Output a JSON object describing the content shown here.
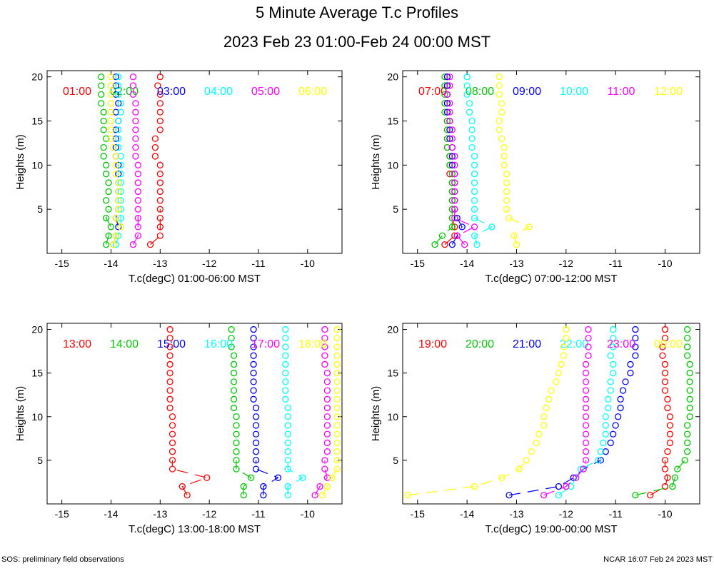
{
  "title": "5 Minute Average T.c Profiles",
  "subtitle": "2023 Feb 23 01:00-Feb 24 00:00 MST",
  "footer_left": "SOS: preliminary field observations",
  "footer_right": "NCAR 16:07 Feb 24 2023 MST",
  "colors": [
    "#ff0000",
    "#00c800",
    "#0000ff",
    "#00ffff",
    "#ff00ff",
    "#ffff00"
  ],
  "chart_data": [
    {
      "type": "line",
      "xlabel": "T.c(degC) 01:00-06:00 MST",
      "ylabel": "Heights (m)",
      "xlim": [
        -15.3,
        -9.3
      ],
      "ylim": [
        0,
        20.7
      ],
      "xticks": [
        -15,
        -14,
        -13,
        -12,
        -11,
        -10
      ],
      "yticks": [
        5,
        10,
        15,
        20
      ],
      "heights": [
        1,
        2,
        3,
        4,
        5,
        6,
        7,
        8,
        9,
        10,
        11,
        12,
        13,
        14,
        15,
        16,
        17,
        18,
        19,
        20
      ],
      "series": [
        {
          "name": "01:00",
          "values": [
            -13.2,
            -13.0,
            -13.0,
            -13.0,
            -13.0,
            -13.0,
            -13.0,
            -13.0,
            -13.0,
            -13.0,
            -13.1,
            -13.1,
            -13.1,
            -13.0,
            -13.0,
            -13.0,
            -13.0,
            -13.0,
            -13.05,
            -13.0
          ]
        },
        {
          "name": "02:00",
          "values": [
            -14.1,
            -14.05,
            -14.0,
            -14.1,
            -14.05,
            -14.1,
            -14.05,
            -14.05,
            -14.1,
            -14.1,
            -14.15,
            -14.15,
            -14.1,
            -14.15,
            -14.15,
            -14.15,
            -14.2,
            -14.2,
            -14.2,
            -14.2
          ]
        },
        {
          "name": "03:00",
          "values": [
            -13.95,
            -13.9,
            -13.85,
            -13.9,
            -13.85,
            -13.85,
            -13.85,
            -13.85,
            -13.85,
            -13.85,
            -13.9,
            -13.9,
            -13.9,
            -13.9,
            -13.85,
            -13.9,
            -13.85,
            -13.9,
            -13.9,
            -13.9
          ]
        },
        {
          "name": "04:00",
          "values": [
            -13.9,
            -13.85,
            -13.8,
            -13.8,
            -13.8,
            -13.8,
            -13.8,
            -13.8,
            -13.8,
            -13.8,
            -13.8,
            -13.85,
            -13.85,
            -13.85,
            -13.85,
            -13.8,
            -13.8,
            -13.85,
            -13.85,
            -13.85
          ]
        },
        {
          "name": "05:00",
          "values": [
            -13.55,
            -13.45,
            -13.45,
            -13.45,
            -13.45,
            -13.45,
            -13.45,
            -13.45,
            -13.45,
            -13.45,
            -13.5,
            -13.5,
            -13.5,
            -13.5,
            -13.5,
            -13.5,
            -13.5,
            -13.55,
            -13.55,
            -13.55
          ]
        },
        {
          "name": "06:00",
          "values": [
            -13.95,
            -13.9,
            -13.8,
            -13.9,
            -13.85,
            -13.85,
            -13.85,
            -13.85,
            -13.9,
            -13.9,
            -13.9,
            -13.95,
            -14.0,
            -14.0,
            -14.0,
            -14.0,
            -14.0,
            -14.0,
            -14.0,
            -14.0
          ]
        }
      ]
    },
    {
      "type": "line",
      "xlabel": "T.c(degC) 07:00-12:00 MST",
      "ylabel": "Heights (m)",
      "xlim": [
        -15.3,
        -9.3
      ],
      "ylim": [
        0,
        20.7
      ],
      "xticks": [
        -15,
        -14,
        -13,
        -12,
        -11,
        -10
      ],
      "yticks": [
        5,
        10,
        15,
        20
      ],
      "heights": [
        1,
        2,
        3,
        4,
        5,
        6,
        7,
        8,
        9,
        10,
        11,
        12,
        13,
        14,
        15,
        16,
        17,
        18,
        19,
        20
      ],
      "series": [
        {
          "name": "07:00",
          "values": [
            -14.45,
            -14.25,
            -14.25,
            -14.3,
            -14.3,
            -14.3,
            -14.3,
            -14.3,
            -14.35,
            -14.35,
            -14.35,
            -14.4,
            -14.4,
            -14.4,
            -14.4,
            -14.4,
            -14.4,
            -14.4,
            -14.4,
            -14.4
          ]
        },
        {
          "name": "08:00",
          "values": [
            -14.65,
            -14.5,
            -14.3,
            -14.3,
            -14.3,
            -14.3,
            -14.3,
            -14.3,
            -14.3,
            -14.35,
            -14.35,
            -14.4,
            -14.4,
            -14.4,
            -14.4,
            -14.45,
            -14.45,
            -14.45,
            -14.45,
            -14.45
          ]
        },
        {
          "name": "09:00",
          "values": [
            -14.3,
            -14.2,
            -14.1,
            -14.2,
            -14.25,
            -14.25,
            -14.25,
            -14.25,
            -14.25,
            -14.3,
            -14.3,
            -14.3,
            -14.35,
            -14.35,
            -14.35,
            -14.4,
            -14.4,
            -14.4,
            -14.4,
            -14.4
          ]
        },
        {
          "name": "10:00",
          "values": [
            -13.8,
            -13.85,
            -13.5,
            -13.85,
            -13.85,
            -13.85,
            -13.85,
            -13.85,
            -13.85,
            -13.85,
            -13.85,
            -13.9,
            -13.9,
            -13.9,
            -13.9,
            -13.95,
            -13.95,
            -14.0,
            -14.0,
            -14.0
          ]
        },
        {
          "name": "11:00",
          "values": [
            -14.05,
            -14.2,
            -13.85,
            -14.25,
            -14.25,
            -14.25,
            -14.25,
            -14.25,
            -14.25,
            -14.25,
            -14.25,
            -14.3,
            -14.3,
            -14.3,
            -14.35,
            -14.35,
            -14.35,
            -14.4,
            -14.35,
            -14.35
          ]
        },
        {
          "name": "12:00",
          "values": [
            -13.0,
            -13.05,
            -12.75,
            -13.15,
            -13.2,
            -13.2,
            -13.2,
            -13.2,
            -13.2,
            -13.25,
            -13.25,
            -13.25,
            -13.3,
            -13.35,
            -13.35,
            -13.3,
            -13.3,
            -13.35,
            -13.35,
            -13.35
          ]
        }
      ]
    },
    {
      "type": "line",
      "xlabel": "T.c(degC) 13:00-18:00 MST",
      "ylabel": "Heights (m)",
      "xlim": [
        -15.3,
        -9.3
      ],
      "ylim": [
        0,
        20.7
      ],
      "xticks": [
        -15,
        -14,
        -13,
        -12,
        -11,
        -10
      ],
      "yticks": [
        5,
        10,
        15,
        20
      ],
      "heights": [
        1,
        2,
        3,
        4,
        5,
        6,
        7,
        8,
        9,
        10,
        11,
        12,
        13,
        14,
        15,
        16,
        17,
        18,
        19,
        20
      ],
      "series": [
        {
          "name": "13:00",
          "values": [
            -12.45,
            -12.55,
            -12.05,
            -12.75,
            -12.75,
            -12.75,
            -12.75,
            -12.75,
            -12.75,
            -12.75,
            -12.8,
            -12.8,
            -12.8,
            -12.8,
            -12.8,
            -12.8,
            -12.8,
            -12.8,
            -12.8,
            -12.8
          ]
        },
        {
          "name": "14:00",
          "values": [
            -11.3,
            -11.3,
            -11.15,
            -11.45,
            -11.45,
            -11.45,
            -11.45,
            -11.45,
            -11.45,
            -11.45,
            -11.5,
            -11.5,
            -11.5,
            -11.5,
            -11.5,
            -11.5,
            -11.5,
            -11.55,
            -11.55,
            -11.55
          ]
        },
        {
          "name": "15:00",
          "values": [
            -10.9,
            -10.9,
            -10.6,
            -11.05,
            -11.05,
            -11.05,
            -11.05,
            -11.05,
            -11.05,
            -11.05,
            -11.05,
            -11.1,
            -11.1,
            -11.1,
            -11.1,
            -11.1,
            -11.1,
            -11.1,
            -11.1,
            -11.1
          ]
        },
        {
          "name": "16:00",
          "values": [
            -10.4,
            -10.4,
            -10.1,
            -10.4,
            -10.4,
            -10.4,
            -10.4,
            -10.4,
            -10.4,
            -10.4,
            -10.4,
            -10.45,
            -10.45,
            -10.45,
            -10.45,
            -10.45,
            -10.45,
            -10.45,
            -10.45,
            -10.45
          ]
        },
        {
          "name": "17:00",
          "values": [
            -9.85,
            -9.75,
            -9.6,
            -9.65,
            -9.65,
            -9.6,
            -9.6,
            -9.6,
            -9.6,
            -9.6,
            -9.6,
            -9.6,
            -9.6,
            -9.6,
            -9.6,
            -9.65,
            -9.65,
            -9.65,
            -9.65,
            -9.65
          ]
        },
        {
          "name": "18:00",
          "values": [
            -9.7,
            -9.6,
            -9.5,
            -9.4,
            -9.4,
            -9.4,
            -9.4,
            -9.4,
            -9.4,
            -9.4,
            -9.4,
            -9.4,
            -9.4,
            -9.4,
            -9.4,
            -9.4,
            -9.4,
            -9.4,
            -9.4,
            -9.4
          ]
        }
      ]
    },
    {
      "type": "line",
      "xlabel": "T.c(degC) 19:00-00:00 MST",
      "ylabel": "Heights (m)",
      "xlim": [
        -15.3,
        -9.3
      ],
      "ylim": [
        0,
        20.7
      ],
      "xticks": [
        -15,
        -14,
        -13,
        -12,
        -11,
        -10
      ],
      "yticks": [
        5,
        10,
        15,
        20
      ],
      "heights": [
        1,
        2,
        3,
        4,
        5,
        6,
        7,
        8,
        9,
        10,
        11,
        12,
        13,
        14,
        15,
        16,
        17,
        18,
        19,
        20
      ],
      "series": [
        {
          "name": "19:00",
          "values": [
            -10.3,
            -10.0,
            -9.95,
            -10.0,
            -10.0,
            -9.95,
            -9.9,
            -9.9,
            -9.9,
            -9.9,
            -9.95,
            -9.95,
            -10.0,
            -10.0,
            -10.0,
            -10.0,
            -10.05,
            -10.05,
            -10.0,
            -10.0
          ]
        },
        {
          "name": "20:00",
          "values": [
            -10.6,
            -9.85,
            -9.8,
            -9.75,
            -9.6,
            -9.55,
            -9.55,
            -9.55,
            -9.55,
            -9.5,
            -9.5,
            -9.5,
            -9.5,
            -9.5,
            -9.5,
            -9.5,
            -9.55,
            -9.55,
            -9.55,
            -9.55
          ]
        },
        {
          "name": "21:00",
          "values": [
            -13.15,
            -12.15,
            -11.85,
            -11.65,
            -11.3,
            -11.2,
            -11.1,
            -11.05,
            -11.0,
            -10.95,
            -10.9,
            -10.9,
            -10.85,
            -10.8,
            -10.7,
            -10.7,
            -10.6,
            -10.6,
            -10.6,
            -10.6
          ]
        },
        {
          "name": "22:00",
          "values": [
            -12.15,
            -11.9,
            -11.8,
            -11.7,
            -11.35,
            -11.3,
            -11.25,
            -11.2,
            -11.2,
            -11.2,
            -11.15,
            -11.15,
            -11.1,
            -11.1,
            -11.05,
            -11.05,
            -11.1,
            -11.05,
            -11.05,
            -11.05
          ]
        },
        {
          "name": "23:00",
          "values": [
            -12.45,
            -12.0,
            -11.8,
            -11.65,
            -11.6,
            -11.6,
            -11.6,
            -11.6,
            -11.6,
            -11.6,
            -11.6,
            -11.6,
            -11.6,
            -11.6,
            -11.6,
            -11.6,
            -11.55,
            -11.55,
            -11.55,
            -11.55
          ]
        },
        {
          "name": "00:00",
          "values": [
            -15.2,
            -13.85,
            -13.3,
            -12.95,
            -12.8,
            -12.7,
            -12.6,
            -12.55,
            -12.45,
            -12.45,
            -12.4,
            -12.35,
            -12.3,
            -12.2,
            -12.15,
            -12.1,
            -12.05,
            -12.05,
            -12.0,
            -12.0
          ]
        }
      ]
    }
  ]
}
